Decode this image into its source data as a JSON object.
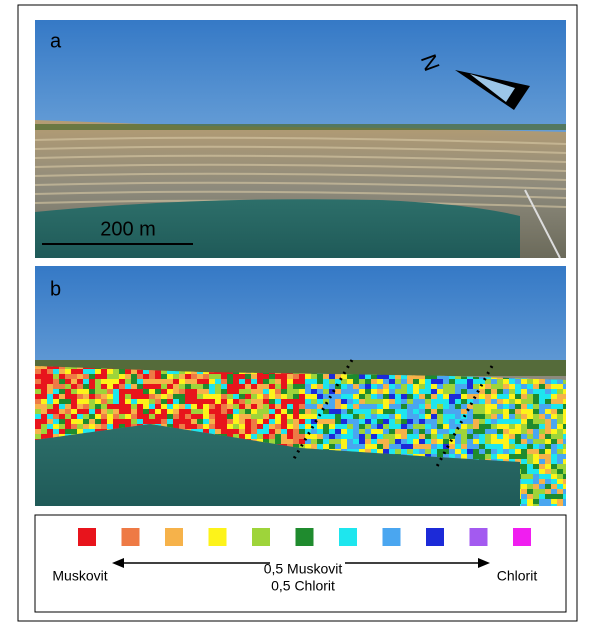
{
  "panel_a": {
    "label": "a",
    "north": "N",
    "scale_bar": "200 m"
  },
  "panel_b": {
    "label": "b"
  },
  "legend": {
    "swatches": [
      "#e8141c",
      "#ee7a45",
      "#f6b24a",
      "#fdf31a",
      "#9ed43a",
      "#1f8b2e",
      "#1ee6ee",
      "#4aa6f0",
      "#1c2ad8",
      "#a35af0",
      "#f01ef0"
    ],
    "left_label": "Muskovit",
    "center_label": [
      "0,5 Muskovit",
      "0,5 Chlorit"
    ],
    "right_label": "Chlorit"
  }
}
